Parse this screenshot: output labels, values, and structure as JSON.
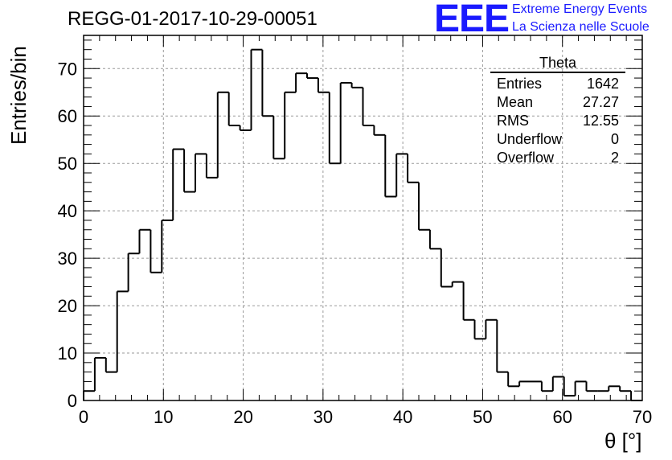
{
  "title": "REGG-01-2017-10-29-00051",
  "logo": {
    "mark": "EEE",
    "line1": "Extreme Energy Events",
    "line2": "La Scienza nelle Scuole",
    "color": "#1a1aff"
  },
  "stats": {
    "title": "Theta",
    "rows": [
      {
        "label": "Entries",
        "value": "1642"
      },
      {
        "label": "Mean",
        "value": "27.27"
      },
      {
        "label": "RMS",
        "value": "12.55"
      },
      {
        "label": "Underflow",
        "value": "0"
      },
      {
        "label": "Overflow",
        "value": "2"
      }
    ]
  },
  "chart_data": {
    "type": "histogram",
    "title": "REGG-01-2017-10-29-00051",
    "xlabel": "θ [°]",
    "ylabel": "Entries/bin",
    "xlim": [
      0,
      70
    ],
    "ylim": [
      0,
      77
    ],
    "bin_width": 1.4,
    "x_ticks": [
      "0",
      "10",
      "20",
      "30",
      "40",
      "50",
      "60",
      "70"
    ],
    "y_ticks": [
      "0",
      "10",
      "20",
      "30",
      "40",
      "50",
      "60",
      "70"
    ],
    "grid": true,
    "values": [
      2,
      9,
      6,
      23,
      31,
      36,
      27,
      38,
      53,
      44,
      52,
      47,
      65,
      58,
      57,
      74,
      60,
      51,
      65,
      69,
      68,
      65,
      50,
      67,
      66,
      58,
      56,
      43,
      52,
      46,
      36,
      32,
      24,
      25,
      17,
      13,
      17,
      6,
      3,
      4,
      4,
      2,
      5,
      1,
      4,
      2,
      2,
      3,
      2,
      0
    ]
  }
}
